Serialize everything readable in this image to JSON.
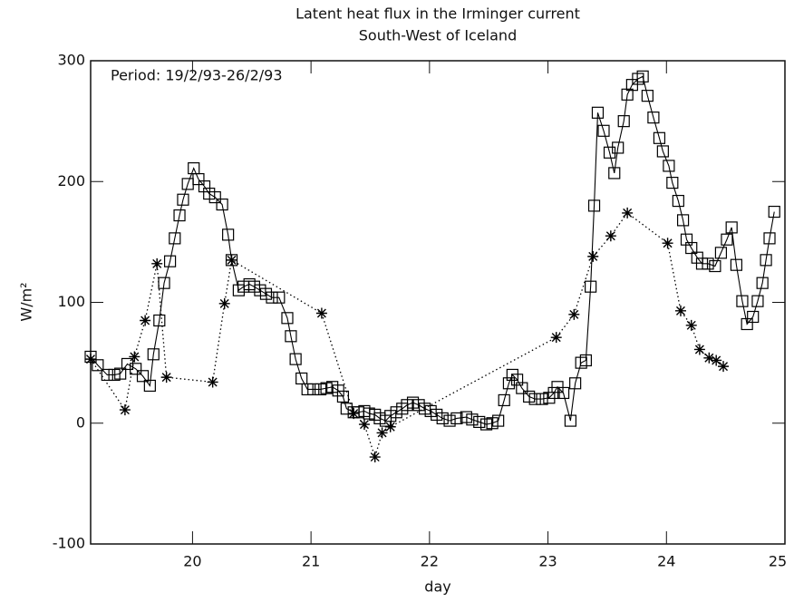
{
  "chart_data": {
    "type": "line",
    "title": "Latent heat flux in the Irminger current",
    "subtitle": "South-West of Iceland",
    "annotation": "Period: 19/2/93-26/2/93",
    "xlabel": "day",
    "ylabel": "W/m²",
    "xlim": [
      19.14,
      25
    ],
    "xticks": [
      20,
      21,
      22,
      23,
      24,
      25
    ],
    "ylim": [
      -100,
      300
    ],
    "yticks": [
      -100,
      0,
      100,
      200,
      300
    ],
    "series": [
      {
        "color": "#000000",
        "line": "solid",
        "marker": "square",
        "x": [
          19.14,
          19.2,
          19.28,
          19.34,
          19.39,
          19.45,
          19.52,
          19.58,
          19.64,
          19.67,
          19.72,
          19.76,
          19.81,
          19.85,
          19.89,
          19.92,
          19.96,
          20.01,
          20.05,
          20.1,
          20.14,
          20.19,
          20.25,
          20.3,
          20.33,
          20.39,
          20.43,
          20.48,
          20.52,
          20.57,
          20.62,
          20.67,
          20.73,
          20.8,
          20.83,
          20.87,
          20.92,
          20.97,
          21.02,
          21.08,
          21.13,
          21.18,
          21.23,
          21.27,
          21.3,
          21.36,
          21.4,
          21.45,
          21.49,
          21.54,
          21.58,
          21.63,
          21.67,
          21.72,
          21.77,
          21.81,
          21.86,
          21.91,
          21.96,
          22.01,
          22.06,
          22.11,
          22.17,
          22.23,
          22.31,
          22.36,
          22.42,
          22.48,
          22.53,
          22.58,
          22.63,
          22.67,
          22.7,
          22.74,
          22.78,
          22.84,
          22.89,
          22.95,
          23.01,
          23.05,
          23.08,
          23.13,
          23.19,
          23.23,
          23.28,
          23.32,
          23.36,
          23.39,
          23.42,
          23.47,
          23.52,
          23.56,
          23.59,
          23.64,
          23.67,
          23.71,
          23.76,
          23.8,
          23.84,
          23.89,
          23.94,
          23.97,
          24.02,
          24.05,
          24.1,
          24.14,
          24.17,
          24.21,
          24.26,
          24.3,
          24.35,
          24.41,
          24.46,
          24.51,
          24.55,
          24.59,
          24.64,
          24.68,
          24.73,
          24.77,
          24.81,
          24.84,
          24.87,
          24.91
        ],
        "values": [
          55,
          48,
          40,
          40,
          41,
          49,
          45,
          39,
          31,
          57,
          85,
          116,
          134,
          153,
          172,
          185,
          198,
          211,
          202,
          196,
          190,
          187,
          181,
          156,
          135,
          110,
          113,
          115,
          113,
          110,
          107,
          104,
          104,
          87,
          72,
          53,
          37,
          28,
          28,
          28,
          29,
          30,
          27,
          22,
          12,
          9,
          9,
          10,
          8,
          7,
          4,
          2,
          6,
          9,
          12,
          15,
          17,
          15,
          12,
          10,
          7,
          4,
          2,
          4,
          5,
          3,
          1,
          -1,
          0,
          2,
          19,
          33,
          40,
          36,
          29,
          22,
          20,
          20,
          21,
          25,
          30,
          25,
          2,
          33,
          50,
          52,
          113,
          180,
          257,
          242,
          224,
          207,
          228,
          250,
          272,
          280,
          285,
          287,
          271,
          253,
          236,
          225,
          213,
          199,
          184,
          168,
          152,
          145,
          137,
          132,
          132,
          130,
          141,
          152,
          162,
          131,
          101,
          82,
          88,
          101,
          116,
          135,
          153,
          175
        ]
      },
      {
        "color": "#000000",
        "line": "dotted",
        "marker": "star",
        "x": [
          19.14,
          19.43,
          19.51,
          19.6,
          19.7,
          19.78,
          20.17,
          20.27,
          20.33,
          21.09,
          21.36,
          21.45,
          21.54,
          21.6,
          21.67,
          23.07,
          23.22,
          23.38,
          23.53,
          23.67,
          24.01,
          24.12,
          24.21,
          24.28,
          24.36,
          24.42,
          24.48
        ],
        "values": [
          53,
          11,
          55,
          85,
          132,
          38,
          34,
          99,
          135,
          91,
          8,
          -1,
          -28,
          -8,
          -3,
          71,
          90,
          138,
          155,
          174,
          149,
          93,
          81,
          61,
          54,
          52,
          47
        ]
      }
    ]
  }
}
